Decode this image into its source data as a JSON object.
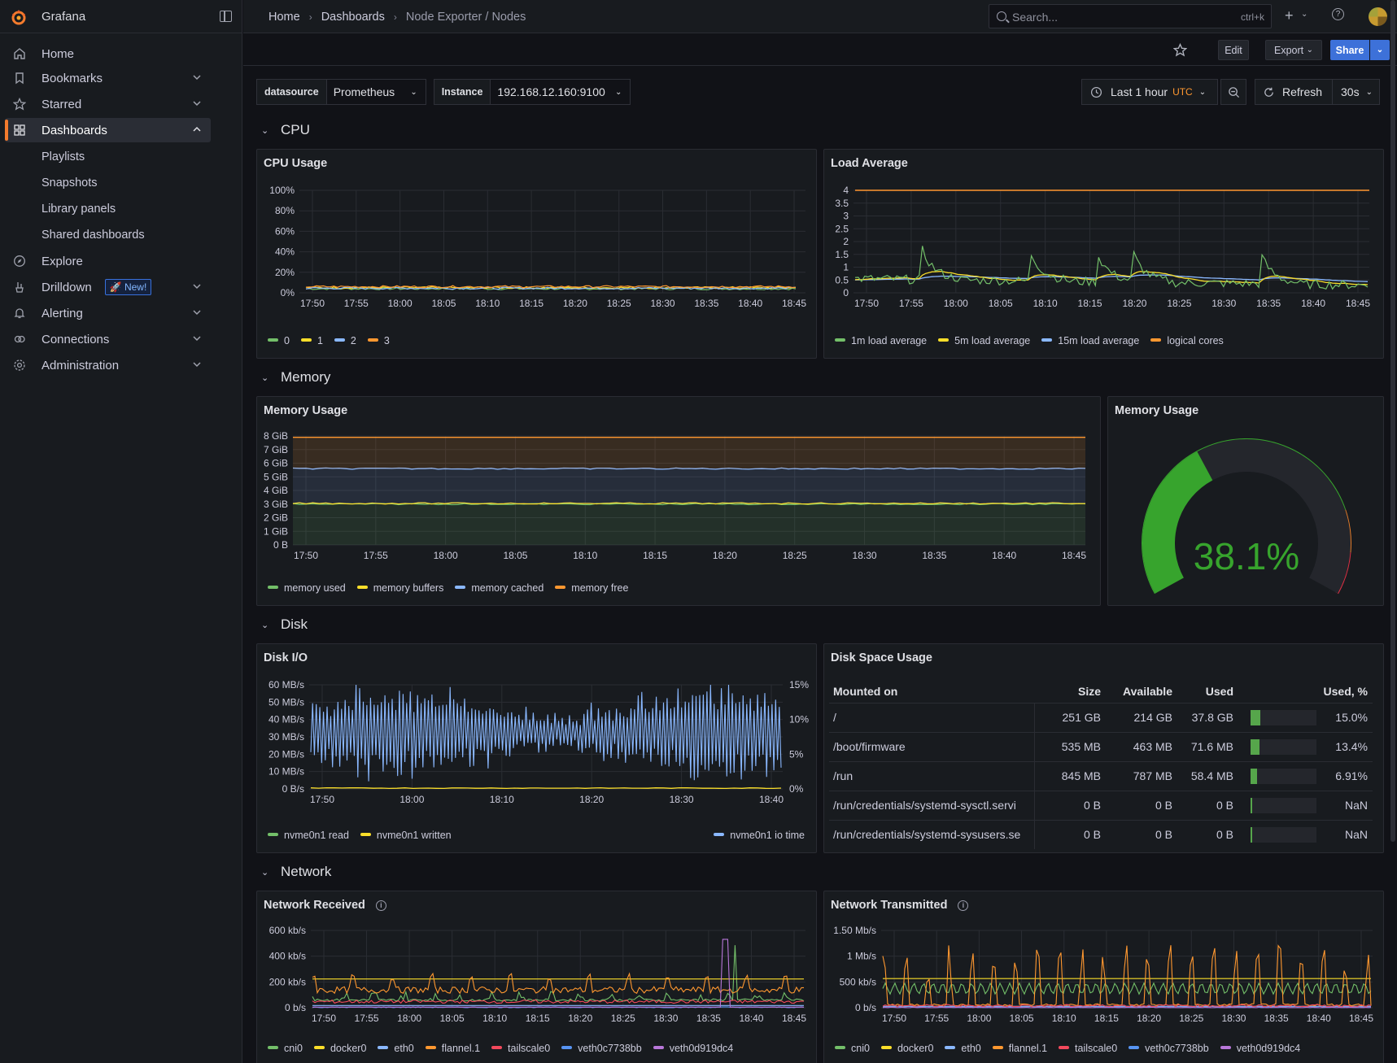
{
  "app": {
    "name": "Grafana"
  },
  "colors": {
    "accent": "#f47b2d",
    "green": "#73bf69",
    "yellow": "#fade2a",
    "blue": "#8ab8ff",
    "orange": "#ff9830",
    "red": "#f2495c",
    "purple": "#ca95e5",
    "primary": "#3d71d9"
  },
  "sidebar": {
    "items": [
      {
        "label": "Home",
        "icon": "home-icon"
      },
      {
        "label": "Bookmarks",
        "icon": "bookmark-icon"
      },
      {
        "label": "Starred",
        "icon": "star-icon"
      },
      {
        "label": "Dashboards",
        "icon": "apps-icon"
      },
      {
        "label": "Explore",
        "icon": "compass-icon"
      },
      {
        "label": "Drilldown",
        "icon": "drilldown-icon",
        "badge": "New!"
      },
      {
        "label": "Alerting",
        "icon": "bell-icon"
      },
      {
        "label": "Connections",
        "icon": "link-icon"
      },
      {
        "label": "Administration",
        "icon": "cog-icon"
      }
    ],
    "dashboards_sub": [
      "Playlists",
      "Snapshots",
      "Library panels",
      "Shared dashboards"
    ]
  },
  "topbar": {
    "breadcrumb": [
      "Home",
      "Dashboards",
      "Node Exporter / Nodes"
    ],
    "search_placeholder": "Search...",
    "search_shortcut": "ctrl+k"
  },
  "toolbar": {
    "edit": "Edit",
    "export": "Export",
    "share": "Share"
  },
  "variables": [
    {
      "label": "datasource",
      "value": "Prometheus"
    },
    {
      "label": "Instance",
      "value": "192.168.12.160:9100"
    }
  ],
  "time": {
    "range": "Last 1 hour",
    "tz": "UTC",
    "refresh_label": "Refresh",
    "interval": "30s"
  },
  "rows": {
    "cpu": "CPU",
    "memory": "Memory",
    "disk": "Disk",
    "network": "Network"
  },
  "panels": {
    "cpu_usage": {
      "title": "CPU Usage"
    },
    "load_avg": {
      "title": "Load Average"
    },
    "mem_usage": {
      "title": "Memory Usage"
    },
    "mem_gauge": {
      "title": "Memory Usage",
      "value": "38.1%",
      "fraction": 0.381
    },
    "disk_io": {
      "title": "Disk I/O"
    },
    "disk_space": {
      "title": "Disk Space Usage",
      "columns": [
        "Mounted on",
        "Size",
        "Available",
        "Used",
        "Used, %"
      ],
      "rows": [
        {
          "mount": "/",
          "size": "251 GB",
          "avail": "214 GB",
          "used": "37.8 GB",
          "pct": "15.0%",
          "frac": 0.15
        },
        {
          "mount": "/boot/firmware",
          "size": "535 MB",
          "avail": "463 MB",
          "used": "71.6 MB",
          "pct": "13.4%",
          "frac": 0.134
        },
        {
          "mount": "/run",
          "size": "845 MB",
          "avail": "787 MB",
          "used": "58.4 MB",
          "pct": "6.91%",
          "frac": 0.0691
        },
        {
          "mount": "/run/credentials/systemd-sysctl.servi",
          "size": "0 B",
          "avail": "0 B",
          "used": "0 B",
          "pct": "NaN",
          "frac": 0
        },
        {
          "mount": "/run/credentials/systemd-sysusers.se",
          "size": "0 B",
          "avail": "0 B",
          "used": "0 B",
          "pct": "NaN",
          "frac": 0
        }
      ]
    },
    "net_rx": {
      "title": "Network Received"
    },
    "net_tx": {
      "title": "Network Transmitted"
    }
  },
  "chart_data": [
    {
      "id": "cpu",
      "type": "line",
      "title": "CPU Usage",
      "x_ticks": [
        "17:50",
        "17:55",
        "18:00",
        "18:05",
        "18:10",
        "18:15",
        "18:20",
        "18:25",
        "18:30",
        "18:35",
        "18:40",
        "18:45"
      ],
      "y_ticks": [
        "0%",
        "20%",
        "40%",
        "60%",
        "80%",
        "100%"
      ],
      "ylim": [
        0,
        100
      ],
      "series": [
        {
          "name": "0",
          "color": "#73bf69",
          "level": 4
        },
        {
          "name": "1",
          "color": "#fade2a",
          "level": 5
        },
        {
          "name": "2",
          "color": "#8ab8ff",
          "level": 4.5
        },
        {
          "name": "3",
          "color": "#ff9830",
          "level": 6
        }
      ]
    },
    {
      "id": "load",
      "type": "line",
      "title": "Load Average",
      "x_ticks": [
        "17:50",
        "17:55",
        "18:00",
        "18:05",
        "18:10",
        "18:15",
        "18:20",
        "18:25",
        "18:30",
        "18:35",
        "18:40",
        "18:45"
      ],
      "y_ticks": [
        "0",
        "0.5",
        "1",
        "1.5",
        "2",
        "2.5",
        "3",
        "3.5",
        "4"
      ],
      "ylim": [
        0,
        4.3
      ],
      "series": [
        {
          "name": "1m load average",
          "color": "#73bf69"
        },
        {
          "name": "5m load average",
          "color": "#fade2a"
        },
        {
          "name": "15m load average",
          "color": "#8ab8ff"
        },
        {
          "name": "logical cores",
          "color": "#ff9830",
          "value": 4
        }
      ]
    },
    {
      "id": "mem",
      "type": "area",
      "title": "Memory Usage",
      "x_ticks": [
        "17:50",
        "17:55",
        "18:00",
        "18:05",
        "18:10",
        "18:15",
        "18:20",
        "18:25",
        "18:30",
        "18:35",
        "18:40",
        "18:45"
      ],
      "y_ticks": [
        "0 B",
        "1 GiB",
        "2 GiB",
        "3 GiB",
        "4 GiB",
        "5 GiB",
        "6 GiB",
        "7 GiB",
        "8 GiB"
      ],
      "ylim": [
        0,
        8
      ],
      "series": [
        {
          "name": "memory used",
          "color": "#73bf69",
          "value_gib": 3.0
        },
        {
          "name": "memory buffers",
          "color": "#fade2a",
          "value_gib": 3.05
        },
        {
          "name": "memory cached",
          "color": "#8ab8ff",
          "value_gib": 5.6
        },
        {
          "name": "memory free",
          "color": "#ff9830",
          "value_gib": 7.9
        }
      ]
    },
    {
      "id": "disk",
      "type": "line",
      "title": "Disk I/O",
      "x_ticks": [
        "17:50",
        "18:00",
        "18:10",
        "18:20",
        "18:30",
        "18:40"
      ],
      "y_ticks": [
        "0 B/s",
        "10 MB/s",
        "20 MB/s",
        "30 MB/s",
        "40 MB/s",
        "50 MB/s",
        "60 MB/s"
      ],
      "ylim": [
        0,
        60
      ],
      "y2_ticks": [
        "0%",
        "5%",
        "10%",
        "15%"
      ],
      "series": [
        {
          "name": "nvme0n1 read",
          "color": "#73bf69"
        },
        {
          "name": "nvme0n1 written",
          "color": "#fade2a"
        },
        {
          "name": "nvme0n1 io time",
          "color": "#8ab8ff"
        }
      ]
    },
    {
      "id": "rx",
      "type": "line",
      "title": "Network Received",
      "x_ticks": [
        "17:50",
        "17:55",
        "18:00",
        "18:05",
        "18:10",
        "18:15",
        "18:20",
        "18:25",
        "18:30",
        "18:35",
        "18:40",
        "18:45"
      ],
      "y_ticks": [
        "0 b/s",
        "200 kb/s",
        "400 kb/s",
        "600 kb/s"
      ],
      "ylim": [
        0,
        700
      ],
      "series": [
        {
          "name": "cni0",
          "color": "#73bf69"
        },
        {
          "name": "docker0",
          "color": "#fade2a"
        },
        {
          "name": "eth0",
          "color": "#8ab8ff"
        },
        {
          "name": "flannel.1",
          "color": "#ff9830"
        },
        {
          "name": "tailscale0",
          "color": "#f2495c"
        },
        {
          "name": "veth0c7738bb",
          "color": "#5794f2"
        },
        {
          "name": "veth0d919dc4",
          "color": "#b877d9"
        }
      ]
    },
    {
      "id": "tx",
      "type": "line",
      "title": "Network Transmitted",
      "x_ticks": [
        "17:50",
        "17:55",
        "18:00",
        "18:05",
        "18:10",
        "18:15",
        "18:20",
        "18:25",
        "18:30",
        "18:35",
        "18:40",
        "18:45"
      ],
      "y_ticks": [
        "0 b/s",
        "500 kb/s",
        "1 Mb/s",
        "1.50 Mb/s"
      ],
      "ylim": [
        0,
        1.7
      ],
      "series": [
        {
          "name": "cni0",
          "color": "#73bf69"
        },
        {
          "name": "docker0",
          "color": "#fade2a"
        },
        {
          "name": "eth0",
          "color": "#8ab8ff"
        },
        {
          "name": "flannel.1",
          "color": "#ff9830"
        },
        {
          "name": "tailscale0",
          "color": "#f2495c"
        },
        {
          "name": "veth0c7738bb",
          "color": "#5794f2"
        },
        {
          "name": "veth0d919dc4",
          "color": "#b877d9"
        }
      ]
    }
  ]
}
